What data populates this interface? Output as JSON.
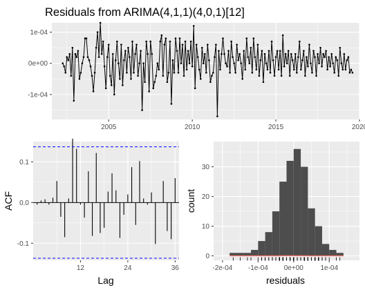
{
  "chart_data": [
    {
      "type": "line",
      "title": "Residuals from ARIMA(4,1,1)(4,0,1)[12]",
      "xlabel": "",
      "ylabel": "",
      "x_ticks": [
        "2005",
        "2010",
        "2015",
        "2020"
      ],
      "y_ticks": [
        "-1e-04",
        "0e+00",
        "1e-04"
      ],
      "xlim": [
        2001.6,
        2020.0
      ],
      "ylim": [
        -0.00018,
        0.00013
      ],
      "grid": true,
      "background": "#ebebeb",
      "series": [
        {
          "start": 2002.25,
          "step": 0.083333,
          "values": [
            0.0,
            -1e-05,
            -3e-05,
            2e-05,
            1e-05,
            3e-05,
            -4e-05,
            5e-05,
            -0.00012,
            3e-05,
            2e-05,
            4e-05,
            -5e-05,
            -3e-05,
            0.0,
            2e-05,
            8e-05,
            8e-05,
            2e-05,
            1e-05,
            -1e-05,
            -4e-05,
            -9e-05,
            -3e-05,
            5e-05,
            0.0001,
            2e-05,
            0.00013,
            3e-05,
            7e-05,
            -1e-05,
            -8e-05,
            2e-05,
            6e-05,
            -4e-05,
            -7e-05,
            3e-05,
            -0.0001,
            1e-05,
            7e-05,
            0.0,
            -5e-05,
            6e-05,
            -7e-05,
            1e-05,
            4e-05,
            -3e-05,
            5e-05,
            2e-05,
            -5e-05,
            7e-05,
            -3e-05,
            3e-05,
            6e-05,
            -4e-05,
            0.0,
            4e-05,
            -0.00015,
            0.0,
            -6e-05,
            7e-05,
            3e-05,
            -9e-05,
            7e-05,
            3e-05,
            -8e-05,
            -6e-05,
            -4e-05,
            0.0,
            -2e-05,
            7e-05,
            9e-05,
            -4e-05,
            6e-05,
            8e-05,
            -6e-05,
            -3e-05,
            7e-05,
            -0.00013,
            1e-05,
            -3e-05,
            8e-05,
            4e-05,
            -3e-05,
            8e-05,
            0.0,
            6e-05,
            -4e-05,
            7e-05,
            -2e-05,
            4e-05,
            0.0,
            7e-05,
            -1e-05,
            0.00012,
            -8e-05,
            6e-05,
            2e-05,
            -2e-05,
            -5e-05,
            5e-05,
            0.0,
            3e-05,
            -3e-05,
            6e-05,
            1e-05,
            -6e-05,
            -4e-05,
            -3e-05,
            2e-05,
            6e-05,
            -0.00017,
            4e-05,
            -2e-05,
            3e-05,
            8e-05,
            3e-05,
            0.0,
            -1e-05,
            4e-05,
            -3e-05,
            7e-05,
            2e-05,
            0.0,
            -3e-05,
            6e-05,
            1e-05,
            3e-05,
            0.0,
            -5e-05,
            4e-05,
            -2e-05,
            8e-05,
            2e-05,
            0.0,
            5e-05,
            -3e-05,
            8e-05,
            2e-05,
            -2e-05,
            6e-05,
            -4e-05,
            1e-05,
            4e-05,
            -6e-05,
            3e-05,
            0.0,
            -2e-05,
            4e-05,
            -3e-05,
            7e-05,
            1e-05,
            -4e-05,
            2e-05,
            4e-05,
            -2e-05,
            4e-05,
            -4e-05,
            9e-05,
            -1e-05,
            3e-05,
            0.0,
            4e-05,
            -4e-05,
            3e-05,
            1e-05,
            -2e-05,
            3e-05,
            -3e-05,
            2e-05,
            7e-05,
            -2e-05,
            1e-05,
            4e-05,
            -4e-05,
            2e-05,
            -1e-05,
            6e-05,
            0.0,
            -3e-05,
            4e-05,
            2e-05,
            -4e-05,
            3e-05,
            0.0,
            5e-05,
            -1e-05,
            3e-05,
            2e-05,
            4e-05,
            -2e-05,
            2e-05,
            -1e-05,
            3e-05,
            0.0,
            -3e-05,
            2e-05,
            1e-05,
            -4e-05,
            5e-05,
            0.0,
            -2e-05,
            3e-05,
            -2e-05,
            1e-05,
            2e-05,
            -3e-05,
            -2e-05,
            -3e-05
          ]
        }
      ]
    },
    {
      "type": "bar",
      "xlabel": "Lag",
      "ylabel": "ACF",
      "x_ticks": [
        "12",
        "24",
        "36"
      ],
      "y_ticks": [
        "-0.1",
        "0.0",
        "0.1"
      ],
      "xlim": [
        0,
        37
      ],
      "ylim": [
        -0.142,
        0.15
      ],
      "confidence_bound": 0.137,
      "confidence_line_color": "#0000ff",
      "grid": true,
      "background": "#ebebeb",
      "lags": [
        1,
        2,
        3,
        4,
        5,
        6,
        7,
        8,
        9,
        10,
        11,
        12,
        13,
        14,
        15,
        16,
        17,
        18,
        19,
        20,
        21,
        22,
        23,
        24,
        25,
        26,
        27,
        28,
        29,
        30,
        31,
        32,
        33,
        34,
        35,
        36
      ],
      "values": [
        -0.005,
        0.005,
        0.008,
        -0.005,
        0.012,
        0.053,
        -0.035,
        -0.085,
        0.01,
        0.157,
        0.132,
        -0.005,
        -0.037,
        0.077,
        -0.082,
        0.122,
        -0.075,
        -0.062,
        0.027,
        0.072,
        0.03,
        -0.087,
        -0.03,
        0.02,
        0.087,
        -0.055,
        0.102,
        0.01,
        -0.005,
        0.025,
        -0.102,
        0.0,
        0.053,
        -0.07,
        -0.09,
        0.06
      ]
    },
    {
      "type": "histogram",
      "xlabel": "residuals",
      "ylabel": "count",
      "x_ticks": [
        "-2e-04",
        "-1e-04",
        "0e+00",
        "1e-04"
      ],
      "y_ticks": [
        "0",
        "10",
        "20",
        "30"
      ],
      "xlim": [
        -0.000225,
        0.000185
      ],
      "ylim": [
        -1.5,
        38.5
      ],
      "grid": true,
      "background": "#ebebeb",
      "bar_color": "#4d4d4d",
      "bins": [
        {
          "from": -0.00018,
          "to": -0.00016,
          "count": 1
        },
        {
          "from": -0.00016,
          "to": -0.00014,
          "count": 1
        },
        {
          "from": -0.00014,
          "to": -0.00012,
          "count": 1
        },
        {
          "from": -0.00012,
          "to": -0.0001,
          "count": 2
        },
        {
          "from": -0.0001,
          "to": -8e-05,
          "count": 5
        },
        {
          "from": -8e-05,
          "to": -6e-05,
          "count": 8
        },
        {
          "from": -6e-05,
          "to": -4e-05,
          "count": 15
        },
        {
          "from": -4e-05,
          "to": -2e-05,
          "count": 25
        },
        {
          "from": -2e-05,
          "to": 0.0,
          "count": 32
        },
        {
          "from": 0.0,
          "to": 2e-05,
          "count": 36
        },
        {
          "from": 2e-05,
          "to": 4e-05,
          "count": 30
        },
        {
          "from": 4e-05,
          "to": 6e-05,
          "count": 16
        },
        {
          "from": 6e-05,
          "to": 8e-05,
          "count": 10
        },
        {
          "from": 8e-05,
          "to": 0.0001,
          "count": 4
        },
        {
          "from": 0.0001,
          "to": 0.00012,
          "count": 2
        },
        {
          "from": 0.00012,
          "to": 0.00014,
          "count": 1
        }
      ],
      "density_curve": {
        "color": "#f8766d",
        "mean": 1e-06,
        "sd": 4.4e-05,
        "scale": 3.6e-06
      }
    }
  ]
}
